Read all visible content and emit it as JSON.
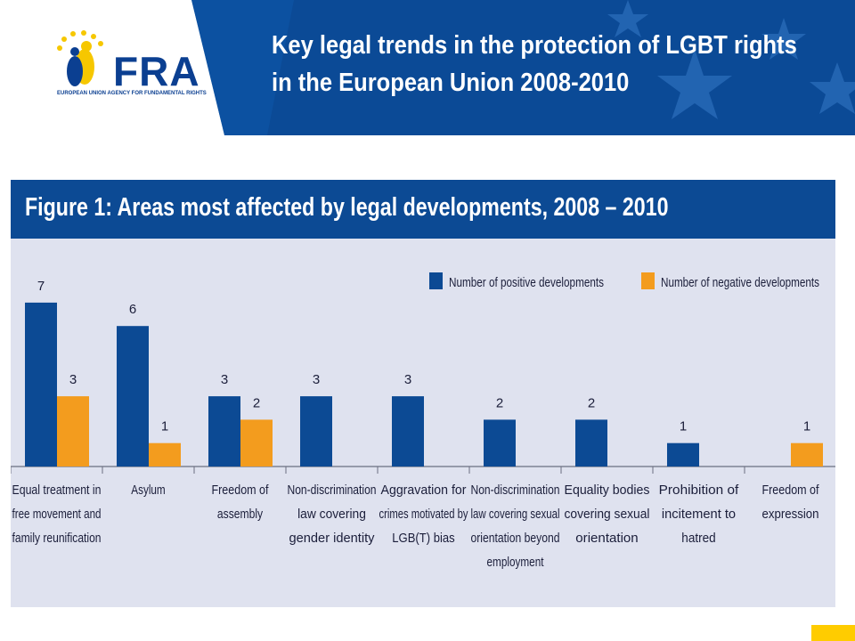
{
  "header": {
    "logo_text": "FRA",
    "logo_subtitle": "EUROPEAN UNION AGENCY FOR FUNDAMENTAL RIGHTS",
    "title_line1": "Key legal trends in the protection of LGBT rights",
    "title_line2": "in the European Union 2008-2010",
    "banner_color": "#0b4a96"
  },
  "chart_data": {
    "type": "bar",
    "title": "Figure 1: Areas most affected by legal developments, 2008 – 2010",
    "categories": [
      "Equal treatment in free movement and family reunification",
      "Asylum",
      "Freedom of assembly",
      "Non-discrimination law covering gender identity",
      "Aggravation for crimes motivated by LGB(T) bias",
      "Non-discrimination law covering sexual orientation beyond employment",
      "Equality bodies covering sexual orientation",
      "Prohibition of incitement to hatred",
      "Freedom of expression"
    ],
    "category_lines": [
      [
        "Equal treatment in",
        "free movement and",
        "family reunification"
      ],
      [
        "Asylum"
      ],
      [
        "Freedom of",
        "assembly"
      ],
      [
        "Non-discrimination",
        "law covering",
        "gender identity"
      ],
      [
        "Aggravation for",
        "crimes motivated by",
        "LGB(T) bias"
      ],
      [
        "Non-discrimination",
        "law covering sexual",
        "orientation beyond",
        "employment"
      ],
      [
        "Equality bodies",
        "covering sexual",
        "orientation"
      ],
      [
        "Prohibition of",
        "incitement to",
        "hatred"
      ],
      [
        "Freedom of",
        "expression"
      ]
    ],
    "series": [
      {
        "name": "Number of positive developments",
        "color": "#0c4a94",
        "values": [
          7,
          6,
          3,
          3,
          3,
          2,
          2,
          1,
          0
        ]
      },
      {
        "name": "Number of negative developments",
        "color": "#f39c1e",
        "values": [
          3,
          1,
          2,
          0,
          0,
          0,
          0,
          0,
          1
        ]
      }
    ],
    "ylim": [
      0,
      7
    ],
    "legend_position": "top-right",
    "grid": false,
    "data_labels": true
  }
}
